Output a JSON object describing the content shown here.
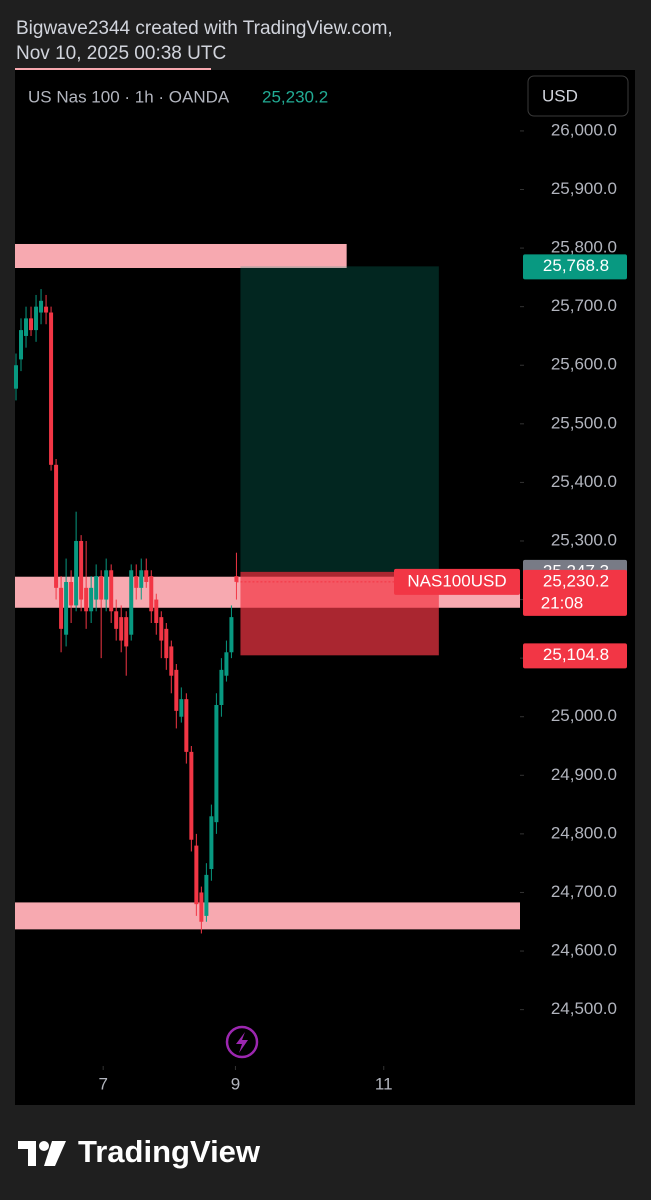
{
  "header": {
    "credit": "Bigwave2344 created with TradingView.com,",
    "timestamp": "Nov 10, 2025 00:38 UTC"
  },
  "chart_data": {
    "type": "candlestick",
    "symbol_info": "US Nas 100 · 1h · OANDA",
    "currency": "USD",
    "up_color": "#089981",
    "down_color": "#f23645",
    "x": [
      0,
      1,
      2,
      3,
      4,
      5,
      6,
      7,
      8,
      9,
      10,
      11,
      12,
      13,
      14,
      15,
      16,
      17,
      18,
      19,
      20,
      21,
      22,
      23,
      24,
      25,
      26,
      27,
      28,
      29,
      30,
      31,
      32,
      33,
      34,
      35,
      36,
      37,
      38,
      39,
      40,
      41,
      42,
      43,
      44
    ],
    "open": [
      25560,
      25610,
      25650,
      25680,
      25660,
      25690,
      25700,
      25690,
      25430,
      25220,
      25140,
      25230,
      25190,
      25300,
      25220,
      25180,
      25200,
      25240,
      25200,
      25250,
      25180,
      25170,
      25170,
      25140,
      25240,
      25220,
      25250,
      25240,
      25200,
      25170,
      25150,
      25120,
      25080,
      25000,
      25030,
      24940,
      24780,
      24700,
      24660,
      24740,
      24820,
      25020,
      25070,
      25110,
      25240
    ],
    "high": [
      25620,
      25680,
      25700,
      25700,
      25720,
      25730,
      25720,
      25700,
      25440,
      25240,
      25270,
      25250,
      25350,
      25310,
      25300,
      25240,
      25260,
      25250,
      25270,
      25260,
      25200,
      25190,
      25180,
      25260,
      25260,
      25270,
      25270,
      25250,
      25210,
      25180,
      25160,
      25130,
      25090,
      25050,
      25040,
      24950,
      24800,
      24710,
      24750,
      24850,
      25040,
      25100,
      25130,
      25190,
      25280
    ],
    "low": [
      25540,
      25590,
      25630,
      25650,
      25640,
      25670,
      25670,
      25420,
      25200,
      25110,
      25120,
      25160,
      25180,
      25180,
      25150,
      25160,
      25180,
      25100,
      25180,
      25160,
      25130,
      25110,
      25070,
      25130,
      25200,
      25200,
      25220,
      25160,
      25140,
      25100,
      25080,
      25040,
      24980,
      24990,
      24920,
      24770,
      24660,
      24630,
      24650,
      24720,
      24800,
      25000,
      25060,
      25100,
      25200
    ],
    "close": [
      25600,
      25660,
      25680,
      25660,
      25700,
      25710,
      25690,
      25430,
      25220,
      25150,
      25230,
      25190,
      25300,
      25200,
      25180,
      25220,
      25240,
      25200,
      25250,
      25180,
      25150,
      25130,
      25120,
      25250,
      25220,
      25250,
      25230,
      25180,
      25160,
      25130,
      25100,
      25070,
      25010,
      25030,
      24940,
      24790,
      24680,
      24650,
      24730,
      24830,
      25020,
      25080,
      25110,
      25170,
      25230.2
    ],
    "xlim": [
      -0.2,
      100.6
    ],
    "xticks": [
      {
        "value": 17.4,
        "label": "7"
      },
      {
        "value": 43.8,
        "label": "9"
      },
      {
        "value": 73.4,
        "label": "11"
      }
    ],
    "ylim": [
      24414,
      26104
    ],
    "yticks": [
      {
        "value": 24500,
        "label": "24,500.0"
      },
      {
        "value": 24600,
        "label": "24,600.0"
      },
      {
        "value": 24700,
        "label": "24,700.0"
      },
      {
        "value": 24800,
        "label": "24,800.0"
      },
      {
        "value": 24900,
        "label": "24,900.0"
      },
      {
        "value": 25000,
        "label": "25,000.0"
      },
      {
        "value": 25100,
        "label": "25,100.0"
      },
      {
        "value": 25200,
        "label": "25,200.0"
      },
      {
        "value": 25300,
        "label": "25,300.0"
      },
      {
        "value": 25400,
        "label": "25,400.0"
      },
      {
        "value": 25500,
        "label": "25,500.0"
      },
      {
        "value": 25600,
        "label": "25,600.0"
      },
      {
        "value": 25700,
        "label": "25,700.0"
      },
      {
        "value": 25800,
        "label": "25,800.0"
      },
      {
        "value": 25900,
        "label": "25,900.0"
      },
      {
        "value": 26000,
        "label": "26,000.0"
      }
    ],
    "zones": [
      {
        "low": 25766,
        "high": 25807,
        "x_start": -0.2,
        "x_end": 66
      },
      {
        "low": 25186,
        "high": 25239,
        "x_start": -0.2,
        "x_end": 100.6
      },
      {
        "low": 24637,
        "high": 24683,
        "x_start": -0.2,
        "x_end": 100.6
      }
    ],
    "position": {
      "x_start": 44.8,
      "x_end": 84.4,
      "target": {
        "value": 25768.8,
        "label": "25,768.8"
      },
      "entry": {
        "value": 25247.3,
        "label": "25,247.3"
      },
      "stop": {
        "value": 25104.8,
        "label": "25,104.8"
      }
    },
    "last_price": {
      "value": 25230.2,
      "label": "25,230.2"
    },
    "countdown": "21:08",
    "symbol": "NAS100USD"
  },
  "footer": {
    "brand": "TradingView"
  }
}
